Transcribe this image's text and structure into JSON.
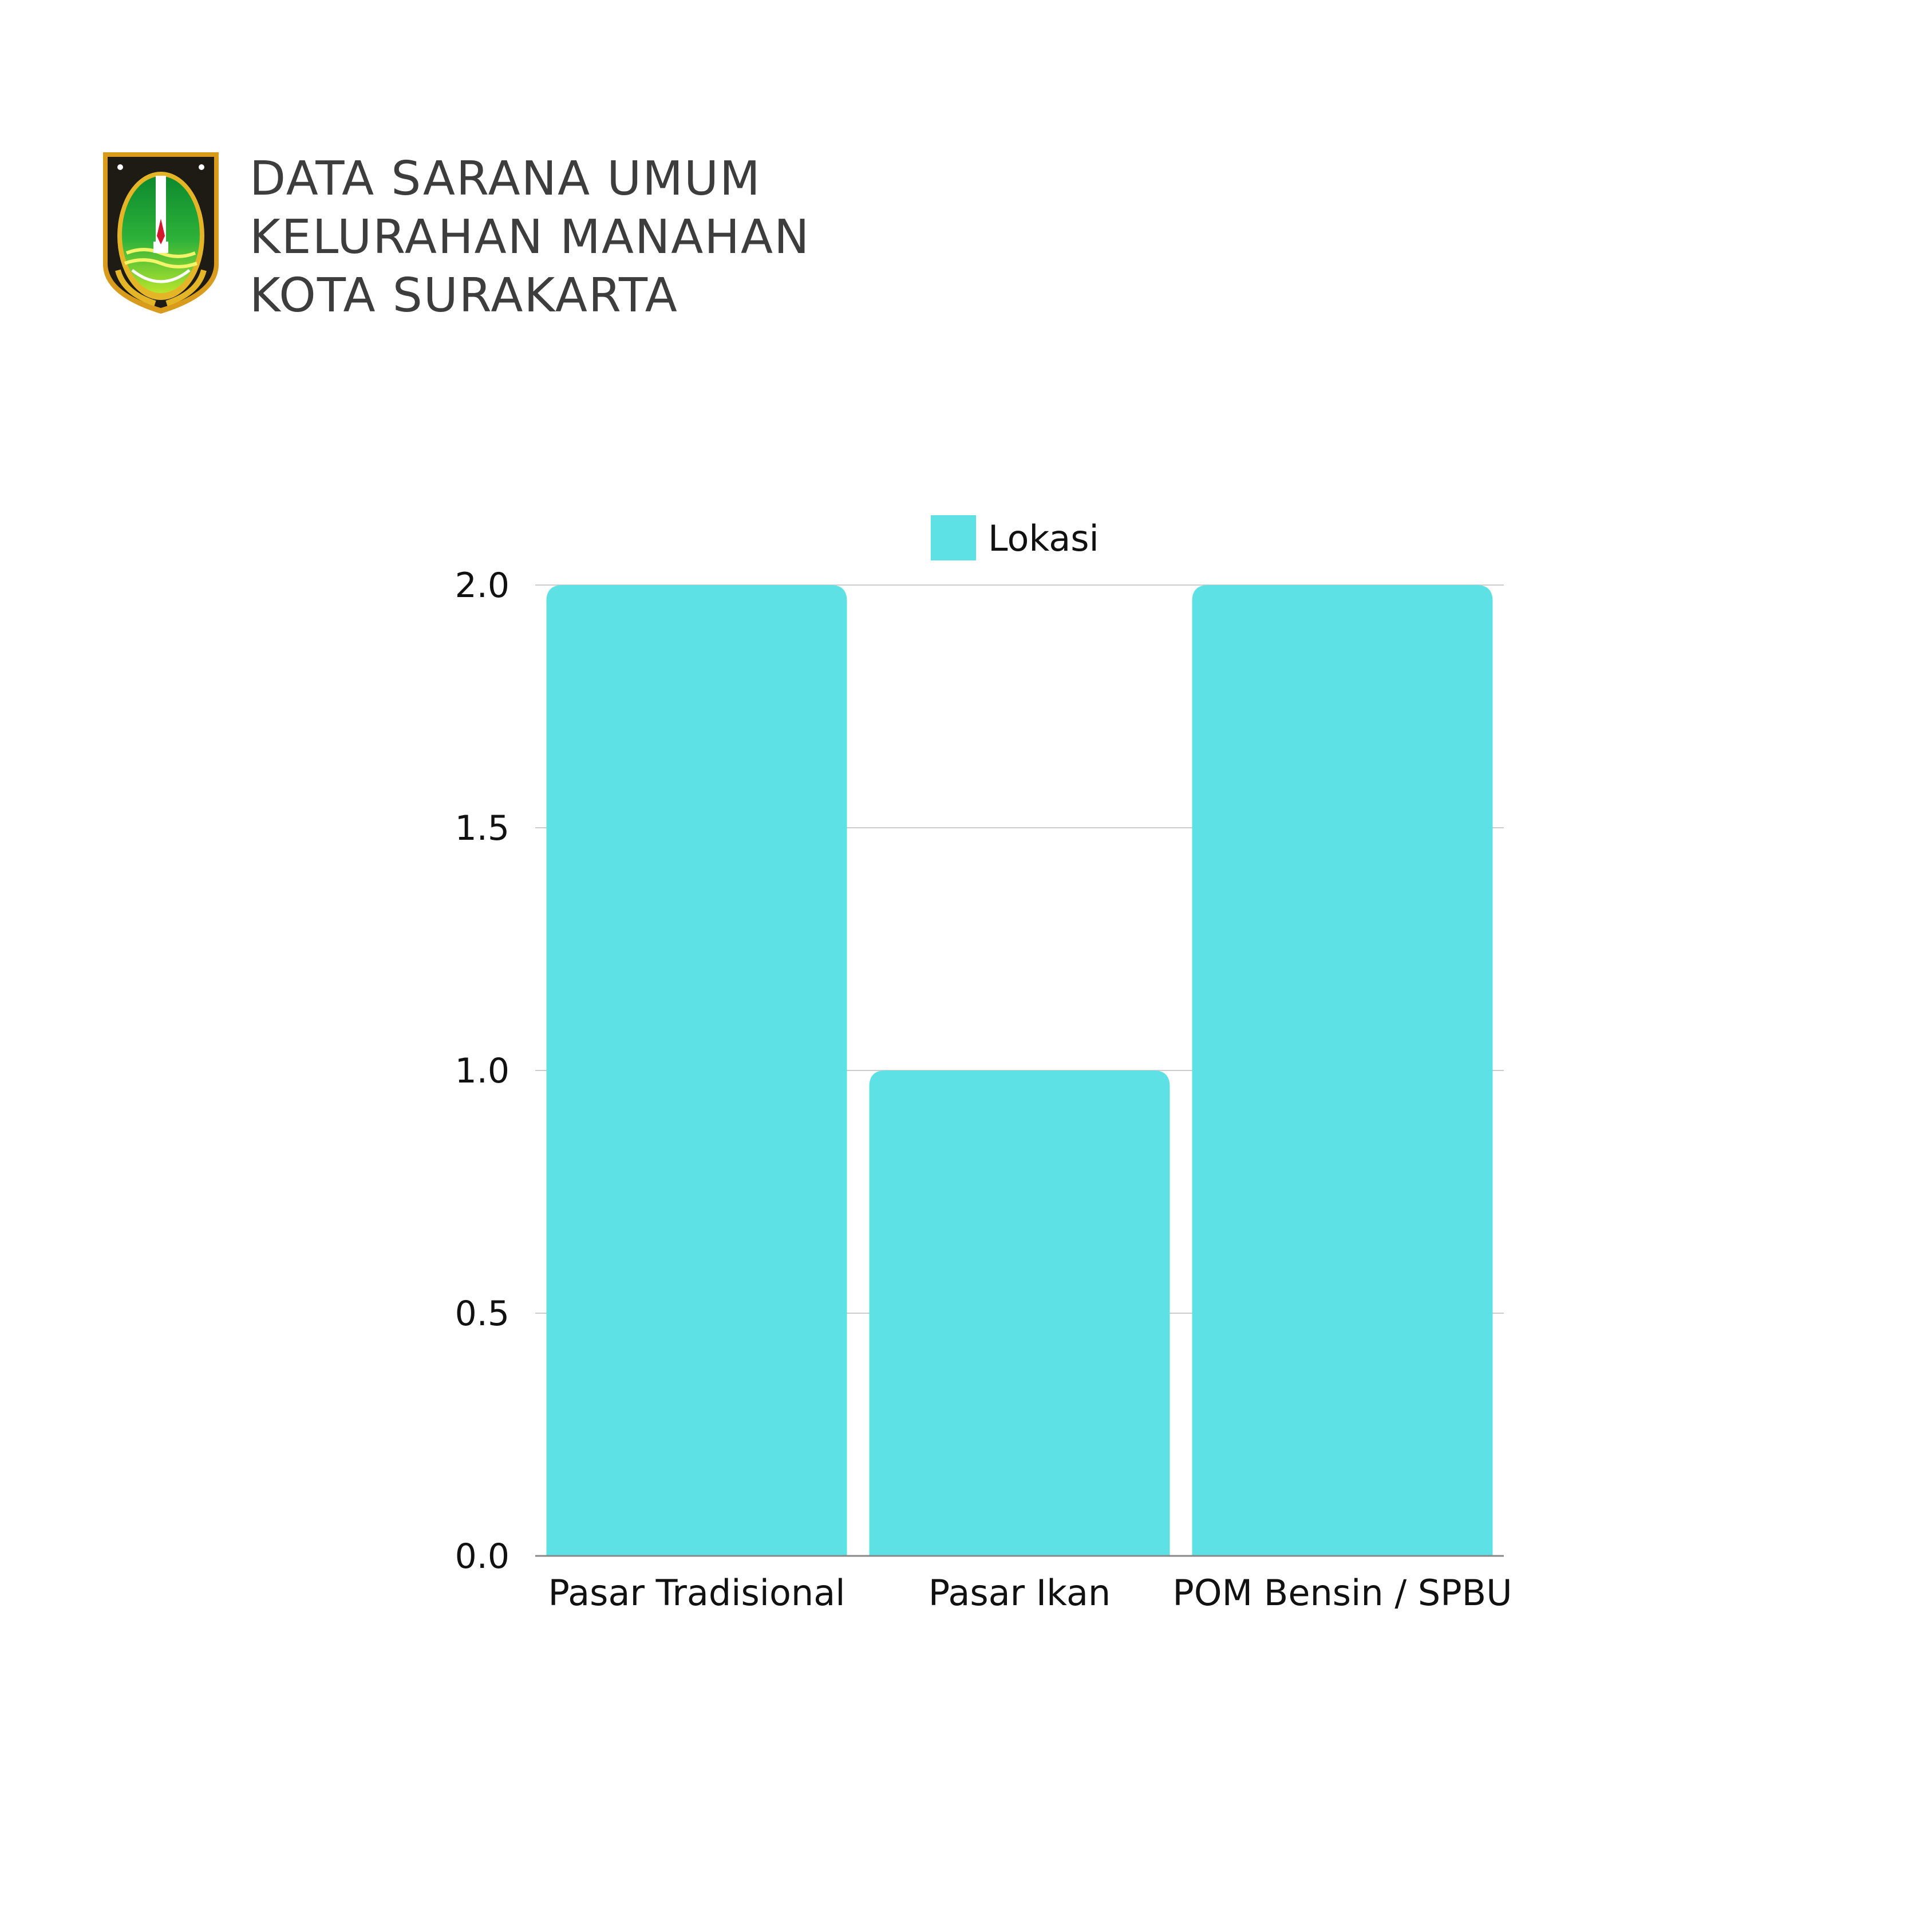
{
  "header": {
    "title_lines": [
      "DATA SARANA UMUM",
      "KELURAHAN MANAHAN",
      "KOTA SURAKARTA"
    ],
    "logo": "surakarta-coat-of-arms"
  },
  "chart_data": {
    "type": "bar",
    "categories": [
      "Pasar Tradisional",
      "Pasar Ikan",
      "POM Bensin / SPBU"
    ],
    "series": [
      {
        "name": "Lokasi",
        "values": [
          2,
          1,
          2
        ],
        "color": "#5ee1e5"
      }
    ],
    "ylim": [
      0,
      2
    ],
    "yticks": [
      "0.0",
      "0.5",
      "1.0",
      "1.5",
      "2.0"
    ],
    "grid": true,
    "legend": "top-center",
    "xlabel": "",
    "ylabel": ""
  }
}
